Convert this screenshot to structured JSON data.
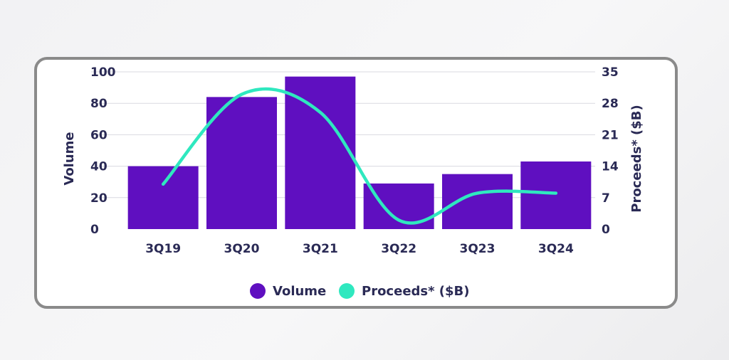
{
  "chart_data": {
    "type": "bar",
    "categories": [
      "3Q19",
      "3Q20",
      "3Q21",
      "3Q22",
      "3Q23",
      "3Q24"
    ],
    "series": [
      {
        "name": "Volume",
        "type": "bar",
        "axis": "left",
        "values": [
          40,
          84,
          97,
          29,
          35,
          43
        ]
      },
      {
        "name": "Proceeds* ($B)",
        "type": "line",
        "axis": "right",
        "values": [
          10,
          30,
          26,
          2,
          8,
          8
        ]
      }
    ],
    "ylabel": "Volume",
    "y2label": "Proceeds* ($B)",
    "ylim": [
      0,
      100
    ],
    "y2lim": [
      0,
      35
    ],
    "yticks": [
      "0",
      "20",
      "40",
      "60",
      "80",
      "100"
    ],
    "y2ticks": [
      "0",
      "7",
      "14",
      "21",
      "28",
      "35"
    ],
    "grid": true,
    "legend": "bottom-center",
    "colors": {
      "Volume": "#5f0fc0",
      "Proceeds* ($B)": "#2fe8bf",
      "text": "#2a2a55",
      "grid": "#d9d9e0"
    }
  }
}
